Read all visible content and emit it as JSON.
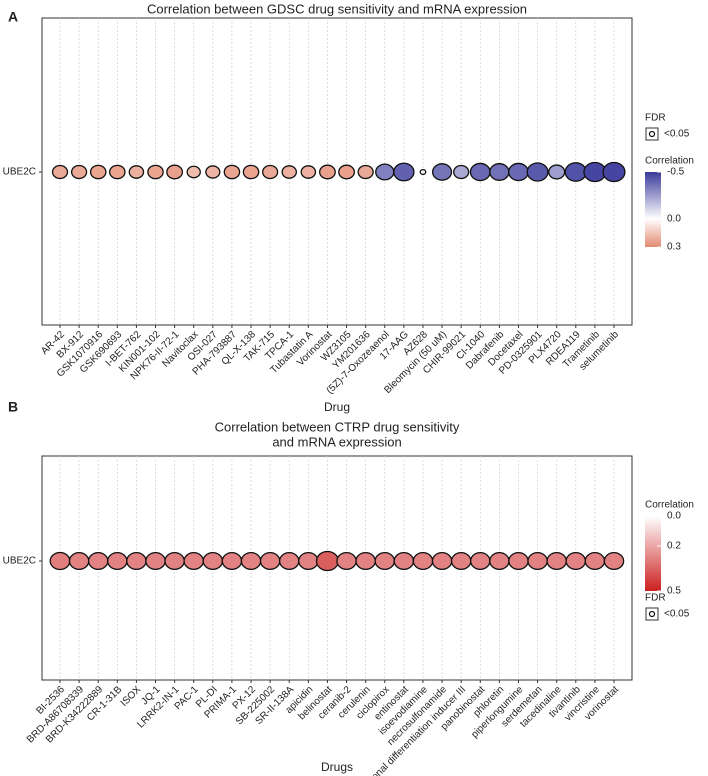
{
  "chart_data": [
    {
      "type": "bubble",
      "panel_label": "A",
      "title": [
        "Correlation between GDSC drug sensitivity and mRNA expression"
      ],
      "x_label": "Drug",
      "y_categories": [
        "UBE2C"
      ],
      "categories": [
        "AR-42",
        "BX-912",
        "GSK1070916",
        "GSK690693",
        "I-BET-762",
        "KIN001-102",
        "NPK76-II-72-1",
        "Navitoclax",
        "OSI-027",
        "PHA-793887",
        "QL-X-138",
        "TAK-715",
        "TPCA-1",
        "Tubastatin A",
        "Vorinostat",
        "WZ3105",
        "YM201636",
        "(5Z)-7-Oxozeaenol",
        "17-AAG",
        "AZ628",
        "Bleomycin (50 uM)",
        "CHIR-99021",
        "CI-1040",
        "Dabrafenib",
        "Docetaxel",
        "PD-0325901",
        "PLX4720",
        "RDEA119",
        "Trametinib",
        "selumetinib"
      ],
      "values": [
        [
          0.22,
          0.22,
          0.23,
          0.23,
          0.2,
          0.23,
          0.24,
          0.17,
          0.19,
          0.23,
          0.23,
          0.22,
          0.2,
          0.2,
          0.24,
          0.24,
          0.22,
          -0.32,
          -0.4,
          -0.03,
          -0.35,
          -0.22,
          -0.38,
          -0.36,
          -0.38,
          -0.42,
          -0.25,
          -0.44,
          -0.47,
          -0.47
        ]
      ],
      "fdr_title": "FDR",
      "fdr_label": "<0.05",
      "colorbar_title": "Correlation",
      "clim": [
        -0.5,
        0.3
      ],
      "cticks": [
        -0.5,
        {
          "value": 0,
          "label": "0.0"
        },
        0.3
      ],
      "colorscale": [
        {
          "value": -0.5,
          "color": "#3a3a9c"
        },
        {
          "value": 0,
          "color": "#ffffff"
        },
        {
          "value": 0.3,
          "color": "#e38a70"
        }
      ],
      "grid": true
    },
    {
      "type": "bubble",
      "panel_label": "B",
      "title": [
        "Correlation between CTRP drug sensitivity",
        "and mRNA expression"
      ],
      "x_label": "Drugs",
      "y_categories": [
        "UBE2C"
      ],
      "categories": [
        "BI-2536",
        "BRD-A86708339",
        "BRD-K34222889",
        "CR-1-31B",
        "ISOX",
        "JQ-1",
        "LRRK2-IN-1",
        "PAC-1",
        "PL-DI",
        "PRIMA-1",
        "PX-12",
        "SB-225002",
        "SR-II-138A",
        "apicidin",
        "belinostat",
        "ceranib-2",
        "cerulenin",
        "ciclopirox",
        "entinostat",
        "isoevodiamine",
        "necrosulfonamide",
        "neuronal differentiation inducer III",
        "panobinostat",
        "phloretin",
        "piperlongumine",
        "serdemetan",
        "tacedinaline",
        "tivantinib",
        "vincristine",
        "vorinostat"
      ],
      "values": [
        [
          0.29,
          0.28,
          0.28,
          0.28,
          0.28,
          0.28,
          0.28,
          0.28,
          0.28,
          0.28,
          0.28,
          0.28,
          0.28,
          0.28,
          0.36,
          0.28,
          0.28,
          0.28,
          0.28,
          0.28,
          0.28,
          0.28,
          0.28,
          0.28,
          0.28,
          0.28,
          0.28,
          0.28,
          0.28,
          0.28
        ]
      ],
      "fdr_title": "FDR",
      "fdr_label": "<0.05",
      "colorbar_title": "Correlation",
      "clim": [
        0,
        0.5
      ],
      "cticks": [
        {
          "value": 0,
          "label": "0.0"
        },
        0.2,
        0.5
      ],
      "colorscale": [
        {
          "value": 0,
          "color": "#ffffff"
        },
        {
          "value": 0.5,
          "color": "#cc2020"
        }
      ],
      "grid": true
    }
  ]
}
